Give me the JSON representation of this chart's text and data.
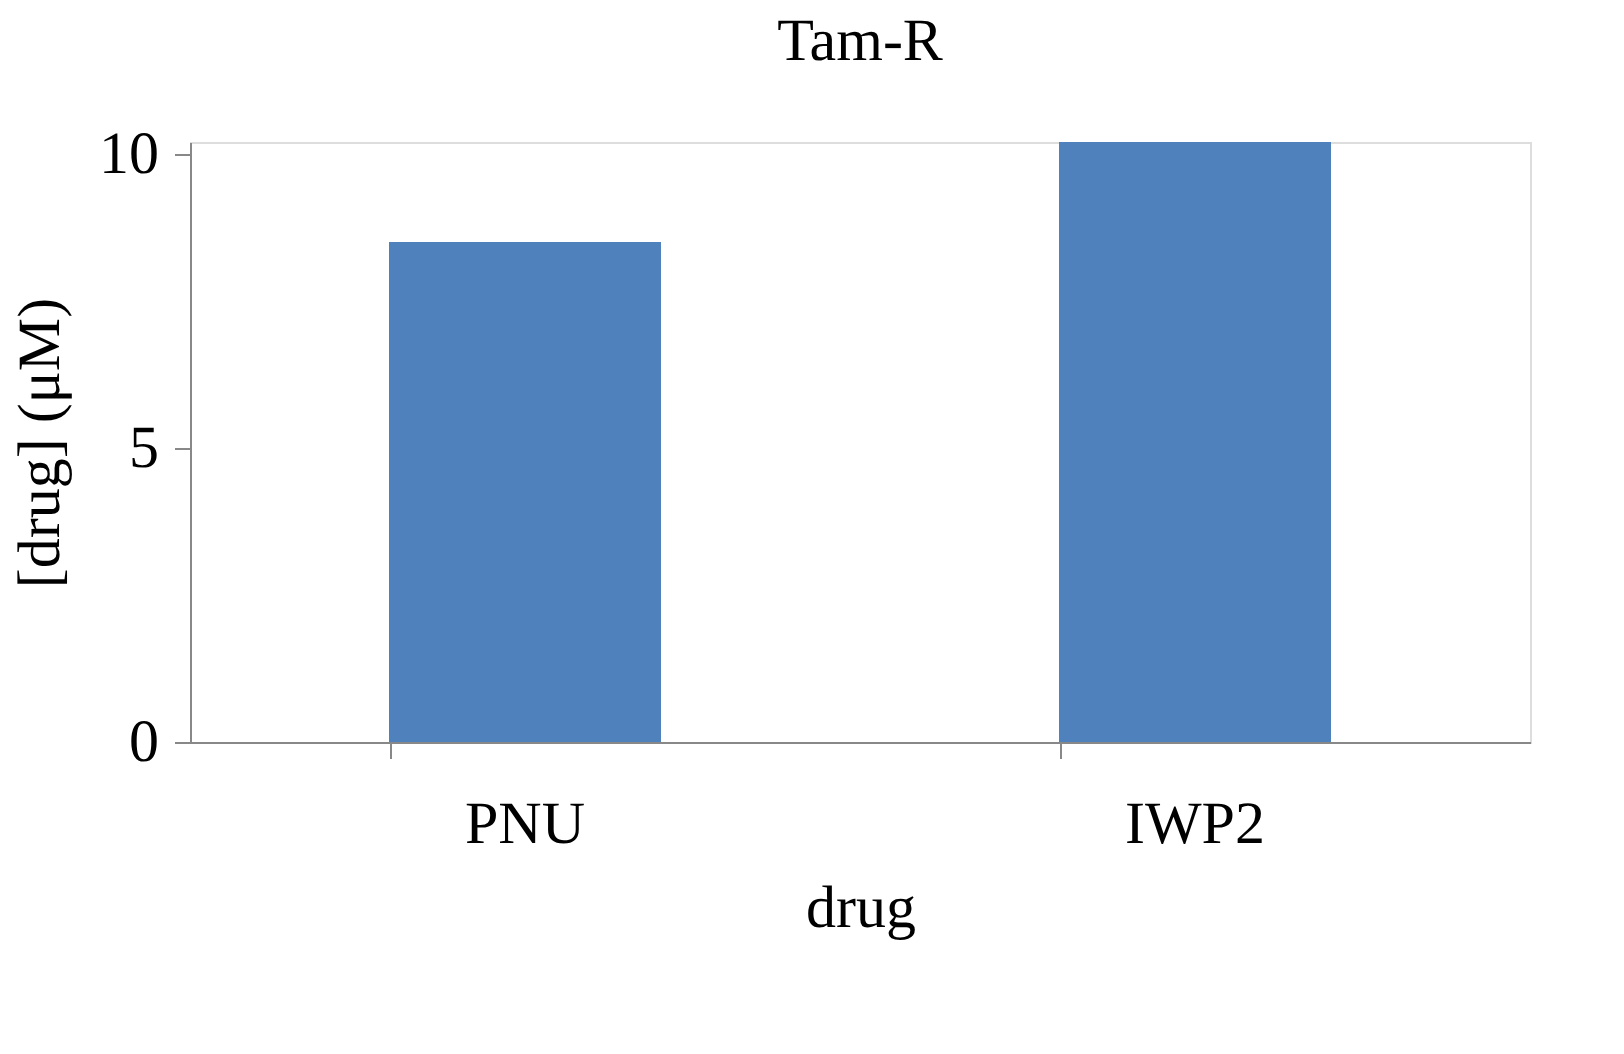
{
  "chart_data": {
    "type": "bar",
    "title": "Tam-R",
    "xlabel": "drug",
    "ylabel": "[drug] (μM)",
    "categories": [
      "PNU",
      "IWP2"
    ],
    "series": [
      {
        "color": "#4f81bd",
        "values": [
          8.5,
          10.2
        ]
      }
    ],
    "ylim": [
      0,
      10.2
    ],
    "yticks": [
      0,
      5,
      10
    ],
    "grid": false,
    "legend": false
  }
}
